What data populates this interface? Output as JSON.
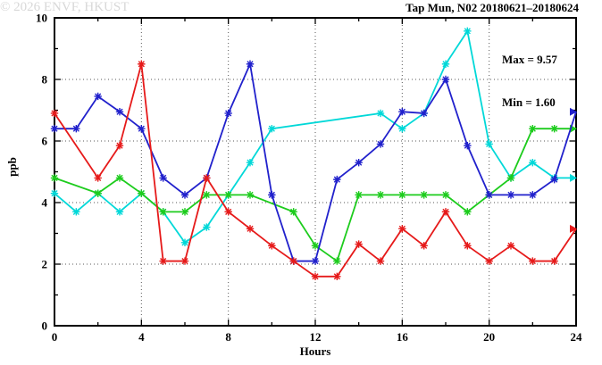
{
  "title": "Tap Mun, N02 20180621–20180624",
  "annotations": {
    "max_label": "Max = 9.57",
    "min_label": "Min = 1.60"
  },
  "watermark": "© 2026 ENVF, HKUST",
  "chart_data": {
    "type": "line",
    "title": "Tap Mun, N02 20180621–20180624",
    "xlabel": "Hours",
    "ylabel": "ppb",
    "xlim": [
      0,
      24
    ],
    "ylim": [
      0,
      10
    ],
    "x_major_ticks": [
      0,
      4,
      8,
      12,
      16,
      20,
      24
    ],
    "x_minor_step": 2,
    "y_major_ticks": [
      0,
      2,
      4,
      6,
      8,
      10
    ],
    "y_minor_step": 1,
    "grid": "dotted-at-major-ticks",
    "legend_position": "none",
    "max_value": 9.57,
    "min_value": 1.6,
    "series": [
      {
        "name": "series-cyan",
        "color": "#00d8d8",
        "end_arrow": true,
        "points": [
          [
            0,
            4.3
          ],
          [
            1,
            3.7
          ],
          [
            2,
            4.3
          ],
          [
            3,
            3.7
          ],
          [
            4,
            4.3
          ],
          [
            5,
            3.7
          ],
          [
            6,
            2.7
          ],
          [
            7,
            3.2
          ],
          [
            8,
            4.25
          ],
          [
            9,
            5.3
          ],
          [
            10,
            6.4
          ],
          [
            15,
            6.9
          ],
          [
            16,
            6.4
          ],
          [
            17,
            6.9
          ],
          [
            18,
            8.5
          ],
          [
            19,
            9.57
          ],
          [
            20,
            5.9
          ],
          [
            21,
            4.8
          ],
          [
            22,
            5.3
          ],
          [
            23,
            4.8
          ],
          [
            24,
            4.8
          ]
        ]
      },
      {
        "name": "series-green",
        "color": "#1dcc1d",
        "end_arrow": true,
        "points": [
          [
            0,
            4.8
          ],
          [
            2,
            4.3
          ],
          [
            3,
            4.8
          ],
          [
            4,
            4.3
          ],
          [
            5,
            3.7
          ],
          [
            6,
            3.7
          ],
          [
            7,
            4.25
          ],
          [
            8,
            4.25
          ],
          [
            9,
            4.25
          ],
          [
            11,
            3.7
          ],
          [
            12,
            2.6
          ],
          [
            13,
            2.1
          ],
          [
            14,
            4.25
          ],
          [
            15,
            4.25
          ],
          [
            16,
            4.25
          ],
          [
            17,
            4.25
          ],
          [
            18,
            4.25
          ],
          [
            19,
            3.7
          ],
          [
            20,
            4.25
          ],
          [
            21,
            4.8
          ],
          [
            22,
            6.4
          ],
          [
            23,
            6.4
          ],
          [
            24,
            6.4
          ]
        ]
      },
      {
        "name": "series-blue",
        "color": "#2121cc",
        "end_arrow": true,
        "points": [
          [
            0,
            6.4
          ],
          [
            1,
            6.4
          ],
          [
            2,
            7.45
          ],
          [
            3,
            6.95
          ],
          [
            4,
            6.4
          ],
          [
            5,
            4.8
          ],
          [
            6,
            4.25
          ],
          [
            7,
            4.8
          ],
          [
            8,
            6.9
          ],
          [
            9,
            8.5
          ],
          [
            10,
            4.25
          ],
          [
            11,
            2.1
          ],
          [
            12,
            2.1
          ],
          [
            13,
            4.75
          ],
          [
            14,
            5.3
          ],
          [
            15,
            5.9
          ],
          [
            16,
            6.95
          ],
          [
            17,
            6.9
          ],
          [
            18,
            8.0
          ],
          [
            19,
            5.85
          ],
          [
            20,
            4.25
          ],
          [
            21,
            4.25
          ],
          [
            22,
            4.25
          ],
          [
            23,
            4.75
          ],
          [
            24,
            6.95
          ]
        ]
      },
      {
        "name": "series-red",
        "color": "#e61a1a",
        "end_arrow": true,
        "points": [
          [
            0,
            6.9
          ],
          [
            2,
            4.8
          ],
          [
            3,
            5.85
          ],
          [
            4,
            8.5
          ],
          [
            5,
            2.1
          ],
          [
            6,
            2.1
          ],
          [
            7,
            4.8
          ],
          [
            8,
            3.7
          ],
          [
            9,
            3.15
          ],
          [
            10,
            2.6
          ],
          [
            11,
            2.1
          ],
          [
            12,
            1.6
          ],
          [
            13,
            1.6
          ],
          [
            14,
            2.65
          ],
          [
            15,
            2.1
          ],
          [
            16,
            3.15
          ],
          [
            17,
            2.6
          ],
          [
            18,
            3.7
          ],
          [
            19,
            2.6
          ],
          [
            20,
            2.1
          ],
          [
            21,
            2.6
          ],
          [
            22,
            2.1
          ],
          [
            23,
            2.1
          ],
          [
            24,
            3.15
          ]
        ]
      }
    ]
  }
}
